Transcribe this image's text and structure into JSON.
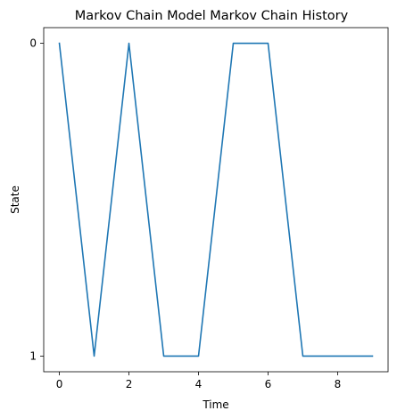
{
  "chart_data": {
    "type": "line",
    "title": "Markov Chain Model Markov Chain History",
    "xlabel": "Time",
    "ylabel": "State",
    "x": [
      0,
      1,
      2,
      3,
      4,
      5,
      6,
      7,
      8,
      9
    ],
    "series": [
      {
        "values": [
          0,
          1,
          0,
          1,
          1,
          0,
          0,
          1,
          1,
          1
        ]
      }
    ],
    "xlim": [
      -0.45,
      9.45
    ],
    "ylim": [
      1.05,
      -0.05
    ],
    "y_inverted": true,
    "xticks": [
      0,
      2,
      4,
      6,
      8
    ],
    "yticks": [
      0,
      1
    ],
    "grid": false,
    "legend": "none",
    "colors": {
      "series": "#1f77b4"
    }
  }
}
